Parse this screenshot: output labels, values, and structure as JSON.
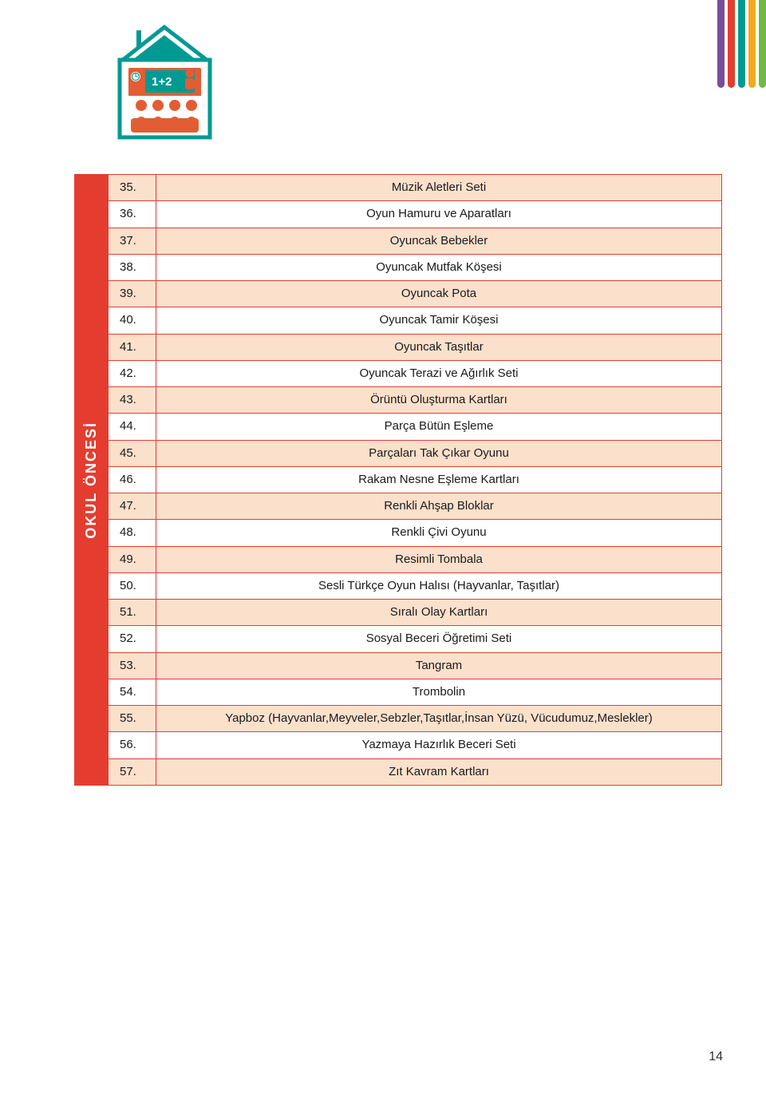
{
  "corner_bars": [
    "#7a4c9c",
    "#e43d30",
    "#009a93",
    "#f5a81c",
    "#6cbb45"
  ],
  "side_label": "OKUL ÖNCESİ",
  "side_bg": "#e43d30",
  "page_number": "14",
  "school_icon": {
    "border": "#009a93",
    "roof": "#009a93",
    "door_bg": "#e25d33",
    "chalkboard": "#009a93",
    "people": "#e25d33"
  },
  "table": {
    "border_color": "#e43d30",
    "shade_color": "#fbe0cc",
    "num_width": 60,
    "rows": [
      {
        "num": "35.",
        "desc": "Müzik Aletleri Seti",
        "shade": true
      },
      {
        "num": "36.",
        "desc": "Oyun Hamuru ve Aparatları",
        "shade": false
      },
      {
        "num": "37.",
        "desc": "Oyuncak Bebekler",
        "shade": true
      },
      {
        "num": "38.",
        "desc": "Oyuncak Mutfak Köşesi",
        "shade": false
      },
      {
        "num": "39.",
        "desc": "Oyuncak Pota",
        "shade": true
      },
      {
        "num": "40.",
        "desc": "Oyuncak Tamir Köşesi",
        "shade": false
      },
      {
        "num": "41.",
        "desc": "Oyuncak Taşıtlar",
        "shade": true
      },
      {
        "num": "42.",
        "desc": "Oyuncak Terazi ve Ağırlık Seti",
        "shade": false
      },
      {
        "num": "43.",
        "desc": "Örüntü Oluşturma Kartları",
        "shade": true
      },
      {
        "num": "44.",
        "desc": "Parça Bütün Eşleme",
        "shade": false
      },
      {
        "num": "45.",
        "desc": "Parçaları Tak Çıkar Oyunu",
        "shade": true
      },
      {
        "num": "46.",
        "desc": "Rakam Nesne Eşleme Kartları",
        "shade": false
      },
      {
        "num": "47.",
        "desc": "Renkli Ahşap Bloklar",
        "shade": true
      },
      {
        "num": "48.",
        "desc": "Renkli Çivi Oyunu",
        "shade": false
      },
      {
        "num": "49.",
        "desc": "Resimli Tombala",
        "shade": true
      },
      {
        "num": "50.",
        "desc": "Sesli Türkçe Oyun Halısı (Hayvanlar, Taşıtlar)",
        "shade": false
      },
      {
        "num": "51.",
        "desc": "Sıralı Olay Kartları",
        "shade": true
      },
      {
        "num": "52.",
        "desc": "Sosyal Beceri Öğretimi Seti",
        "shade": false
      },
      {
        "num": "53.",
        "desc": "Tangram",
        "shade": true
      },
      {
        "num": "54.",
        "desc": "Trombolin",
        "shade": false
      },
      {
        "num": "55.",
        "desc": "Yapboz   (Hayvanlar,Meyveler,Sebzler,Taşıtlar,İnsan Yüzü, Vücudumuz,Meslekler)",
        "shade": true
      },
      {
        "num": "56.",
        "desc": "Yazmaya Hazırlık Beceri Seti",
        "shade": false
      },
      {
        "num": "57.",
        "desc": "Zıt Kavram Kartları",
        "shade": true
      }
    ]
  }
}
